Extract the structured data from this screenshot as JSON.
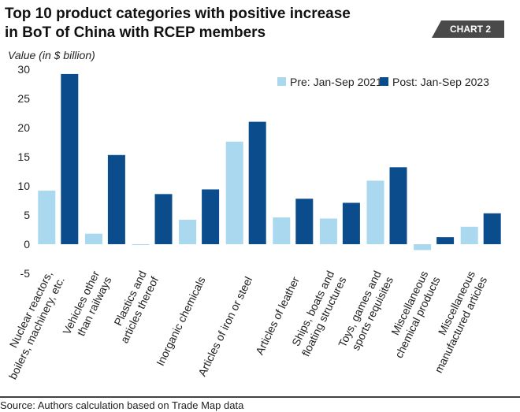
{
  "chart_data": {
    "type": "bar",
    "title_lines": [
      "Top 10 product categories with positive increase",
      "in BoT of China with RCEP members"
    ],
    "badge": "CHART 2",
    "ylabel": "Value (in $ billion)",
    "xlabel": "",
    "ylim": [
      -5,
      30
    ],
    "yticks": [
      30,
      25,
      20,
      15,
      10,
      5,
      0,
      -5
    ],
    "grid": false,
    "legend_position": "top-right",
    "categories": [
      [
        "Nuclear reactors,",
        "boilers, machinery, etc."
      ],
      [
        "Vehicles other",
        "than railways"
      ],
      [
        "Plastics and",
        "articles thereof"
      ],
      [
        "Inorganic chemicals"
      ],
      [
        "Articles of iron or steel"
      ],
      [
        "Articles of leather"
      ],
      [
        "Ships, boats and",
        "floating structures"
      ],
      [
        "Toys, games and",
        "sports requisites"
      ],
      [
        "Miscellaneous",
        "chemical products"
      ],
      [
        "Miscellaneous",
        "manufactured articles"
      ]
    ],
    "series": [
      {
        "name": "Pre: Jan-Sep 2021",
        "color": "#a9d8ef",
        "values": [
          9.2,
          1.8,
          -0.1,
          4.2,
          17.6,
          4.6,
          4.4,
          10.9,
          -1.0,
          3.0
        ]
      },
      {
        "name": "Post: Jan-Sep 2023",
        "color": "#0b4d8c",
        "values": [
          29.2,
          15.3,
          8.6,
          9.4,
          21.0,
          7.8,
          7.1,
          13.2,
          1.2,
          5.3
        ]
      }
    ],
    "source": "Source: Authors calculation based on Trade Map data"
  }
}
